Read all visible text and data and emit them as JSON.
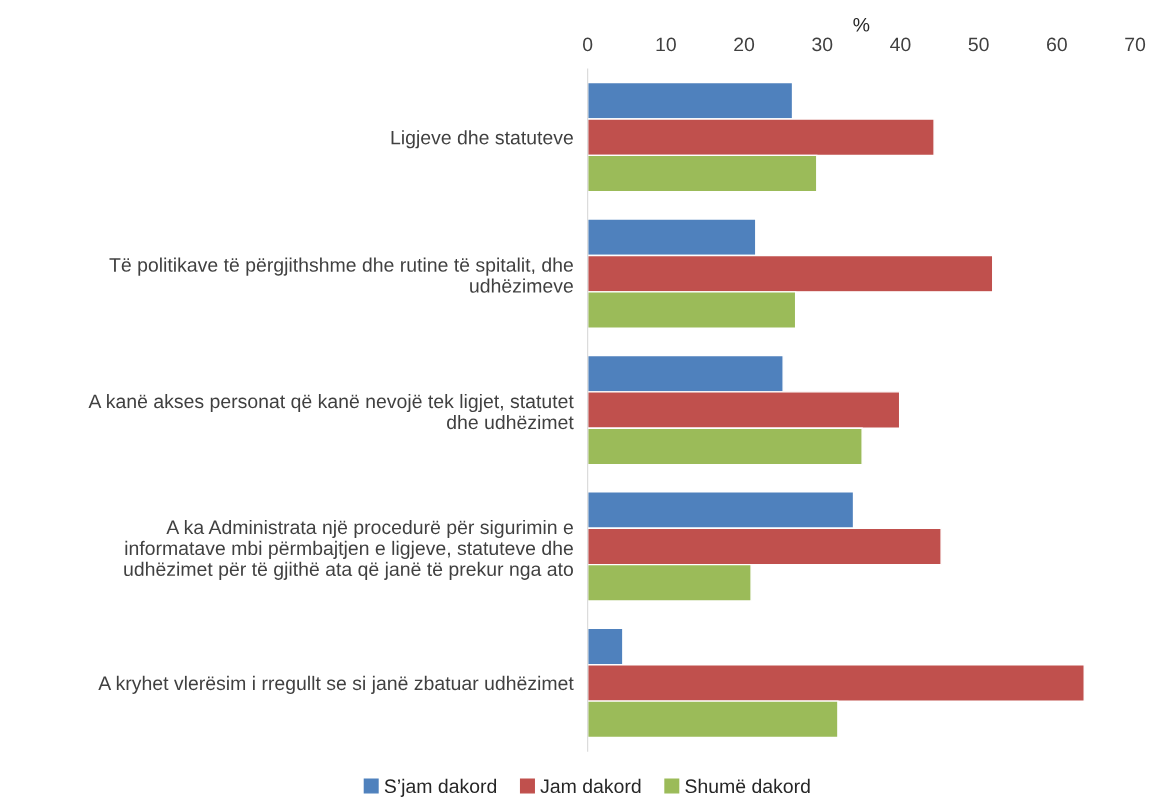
{
  "chart_data": {
    "type": "bar",
    "orientation": "horizontal",
    "xlabel": "%",
    "categories": [
      "Ligjeve dhe statuteve",
      "Të politikave të përgjithshme dhe rutine të spitalit, dhe\nudhëzimeve",
      "A kanë akses personat që kanë nevojë tek ligjet, statutet\ndhe udhëzimet",
      "A ka Administrata një procedurë për sigurimin e\ninformatave mbi përmbajtjen e ligjeve, statuteve dhe\nudhëzimet për të gjithë ata që janë të prekur nga ato",
      "A kryhet vlerësim i rregullt se si janë zbatuar udhëzimet"
    ],
    "series": [
      {
        "name": "S’jam dakord",
        "color": "#4f81bd",
        "values": [
          26.2,
          21.5,
          25.0,
          34.0,
          4.5
        ]
      },
      {
        "name": "Jam dakord",
        "color": "#c0504d",
        "values": [
          44.3,
          51.8,
          39.9,
          45.2,
          63.5
        ]
      },
      {
        "name": "Shumë dakord",
        "color": "#9bbb59",
        "values": [
          29.3,
          26.6,
          35.1,
          20.9,
          32.0
        ]
      }
    ],
    "xlim": [
      0,
      70
    ],
    "xticks": [
      0,
      10,
      20,
      30,
      40,
      50,
      60,
      70
    ],
    "grid": false,
    "legend": "bottom"
  }
}
